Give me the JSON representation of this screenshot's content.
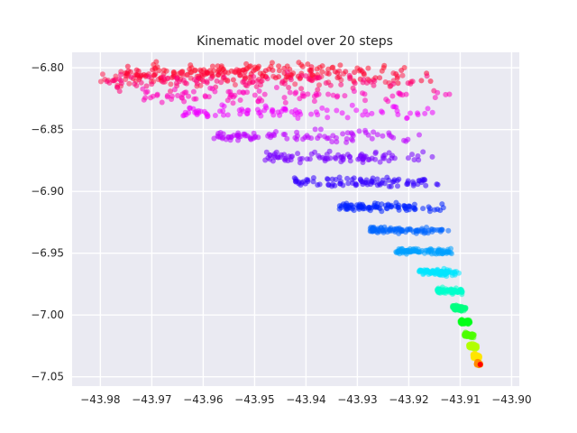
{
  "chart_data": {
    "type": "scatter",
    "title": "Kinematic model over 20 steps",
    "xlabel": "",
    "ylabel": "",
    "xlim": [
      -43.9855,
      -43.8985
    ],
    "ylim": [
      -7.0575,
      -6.7875
    ],
    "xticks": [
      -43.98,
      -43.97,
      -43.96,
      -43.95,
      -43.94,
      -43.93,
      -43.92,
      -43.91,
      -43.9
    ],
    "xtick_labels": [
      "−43.98",
      "−43.97",
      "−43.96",
      "−43.95",
      "−43.94",
      "−43.93",
      "−43.92",
      "−43.91",
      "−43.90"
    ],
    "yticks": [
      -6.8,
      -6.85,
      -6.9,
      -6.95,
      -7.0,
      -7.05
    ],
    "ytick_labels": [
      "−6.80",
      "−6.85",
      "−6.90",
      "−6.95",
      "−7.00",
      "−7.05"
    ],
    "grid": true,
    "background": "#eaeaf2",
    "grid_color": "#ffffff",
    "point_alpha": 0.55,
    "points_per_step": 90,
    "origin": {
      "x": -43.9061,
      "y": -7.04
    },
    "steps": [
      {
        "step": 1,
        "color": "#ff8c00",
        "x_min": -43.9068,
        "x_max": -43.906,
        "y": -7.039
      },
      {
        "step": 2,
        "color": "#ffe600",
        "x_min": -43.9075,
        "x_max": -43.9062,
        "y": -7.033
      },
      {
        "step": 3,
        "color": "#b3ff00",
        "x_min": -43.9083,
        "x_max": -43.9066,
        "y": -7.025
      },
      {
        "step": 4,
        "color": "#4cff00",
        "x_min": -43.9092,
        "x_max": -43.9072,
        "y": -7.016
      },
      {
        "step": 5,
        "color": "#00ff19",
        "x_min": -43.91,
        "x_max": -43.908,
        "y": -7.005
      },
      {
        "step": 6,
        "color": "#00ff80",
        "x_min": -43.9115,
        "x_max": -43.9088,
        "y": -6.994
      },
      {
        "step": 7,
        "color": "#00ffcc",
        "x_min": -43.9145,
        "x_max": -43.9095,
        "y": -6.98
      },
      {
        "step": 8,
        "color": "#00e5ff",
        "x_min": -43.918,
        "x_max": -43.91,
        "y": -6.965
      },
      {
        "step": 9,
        "color": "#00a0ff",
        "x_min": -43.9225,
        "x_max": -43.9115,
        "y": -6.948
      },
      {
        "step": 10,
        "color": "#0066ff",
        "x_min": -43.9275,
        "x_max": -43.912,
        "y": -6.931
      },
      {
        "step": 11,
        "color": "#0022ff",
        "x_min": -43.934,
        "x_max": -43.913,
        "y": -6.912
      },
      {
        "step": 12,
        "color": "#3300ff",
        "x_min": -43.9425,
        "x_max": -43.914,
        "y": -6.892
      },
      {
        "step": 13,
        "color": "#7700ff",
        "x_min": -43.948,
        "x_max": -43.915,
        "y": -6.872
      },
      {
        "step": 14,
        "color": "#bb00ff",
        "x_min": -43.958,
        "x_max": -43.916,
        "y": -6.855
      },
      {
        "step": 15,
        "color": "#ee00ff",
        "x_min": -43.9645,
        "x_max": -43.914,
        "y": -6.836
      },
      {
        "step": 16,
        "color": "#ff00bb",
        "x_min": -43.972,
        "x_max": -43.912,
        "y": -6.822
      },
      {
        "step": 17,
        "color": "#ff0077",
        "x_min": -43.979,
        "x_max": -43.914,
        "y": -6.811
      },
      {
        "step": 18,
        "color": "#ff0033",
        "x_min": -43.976,
        "x_max": -43.915,
        "y": -6.805
      },
      {
        "step": 19,
        "color": "#ff2050",
        "x_min": -43.98,
        "x_max": -43.919,
        "y": -6.808
      },
      {
        "step": 20,
        "color": "#ff1030",
        "x_min": -43.97,
        "x_max": -43.92,
        "y": -6.801
      }
    ]
  }
}
